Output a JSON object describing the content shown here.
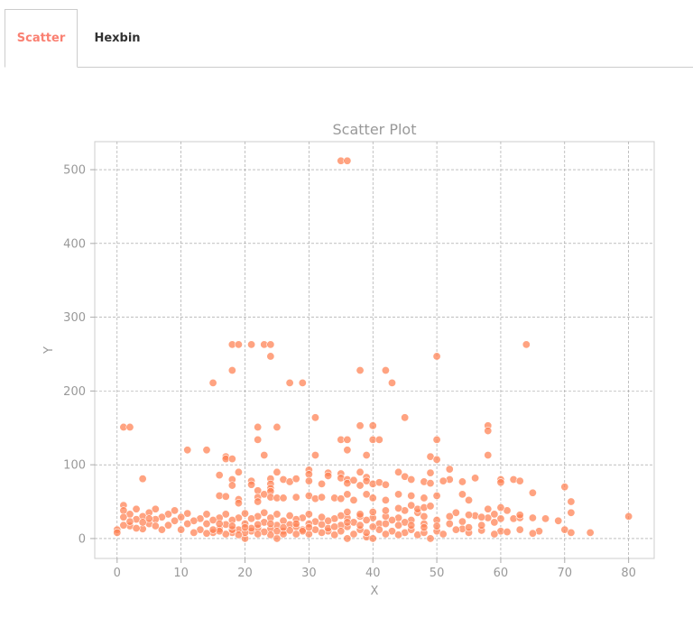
{
  "tabs": [
    {
      "label": "Scatter",
      "active": true
    },
    {
      "label": "Hexbin",
      "active": false
    }
  ],
  "colors": {
    "accent": "#fa8072",
    "point": "#ff7f50",
    "axis_text": "#999999",
    "grid": "#999999"
  },
  "chart_data": {
    "type": "scatter",
    "title": "Scatter Plot",
    "xlabel": "X",
    "ylabel": "Y",
    "xlim": [
      -3.5,
      84
    ],
    "ylim": [
      -27,
      538
    ],
    "xticks": [
      0,
      10,
      20,
      30,
      40,
      50,
      60,
      70,
      80
    ],
    "yticks": [
      0,
      100,
      200,
      300,
      400,
      500
    ],
    "grid": true,
    "grid_style": "dashed",
    "points": [
      [
        35,
        512
      ],
      [
        36,
        512
      ],
      [
        18,
        263
      ],
      [
        19,
        263
      ],
      [
        21,
        263
      ],
      [
        23,
        263
      ],
      [
        24,
        263
      ],
      [
        64,
        263
      ],
      [
        24,
        247
      ],
      [
        50,
        247
      ],
      [
        18,
        228
      ],
      [
        38,
        228
      ],
      [
        42,
        228
      ],
      [
        15,
        211
      ],
      [
        27,
        211
      ],
      [
        29,
        211
      ],
      [
        43,
        211
      ],
      [
        31,
        164
      ],
      [
        45,
        164
      ],
      [
        22,
        151
      ],
      [
        25,
        151
      ],
      [
        38,
        153
      ],
      [
        40,
        153
      ],
      [
        58,
        153
      ],
      [
        58,
        146
      ],
      [
        1,
        151
      ],
      [
        2,
        151
      ],
      [
        22,
        134
      ],
      [
        35,
        134
      ],
      [
        36,
        134
      ],
      [
        40,
        134
      ],
      [
        41,
        134
      ],
      [
        50,
        134
      ],
      [
        11,
        120
      ],
      [
        14,
        120
      ],
      [
        36,
        120
      ],
      [
        23,
        113
      ],
      [
        31,
        113
      ],
      [
        39,
        113
      ],
      [
        58,
        113
      ],
      [
        17,
        111
      ],
      [
        17,
        108
      ],
      [
        18,
        108
      ],
      [
        49,
        111
      ],
      [
        50,
        107
      ],
      [
        4,
        81
      ],
      [
        16,
        86
      ],
      [
        19,
        90
      ],
      [
        25,
        90
      ],
      [
        30,
        93
      ],
      [
        30,
        87
      ],
      [
        33,
        89
      ],
      [
        33,
        85
      ],
      [
        35,
        88
      ],
      [
        35,
        82
      ],
      [
        38,
        90
      ],
      [
        39,
        83
      ],
      [
        44,
        90
      ],
      [
        45,
        84
      ],
      [
        46,
        80
      ],
      [
        48,
        77
      ],
      [
        49,
        89
      ],
      [
        49,
        75
      ],
      [
        52,
        94
      ],
      [
        52,
        80
      ],
      [
        51,
        78
      ],
      [
        54,
        77
      ],
      [
        56,
        82
      ],
      [
        60,
        80
      ],
      [
        60,
        76
      ],
      [
        62,
        80
      ],
      [
        63,
        78
      ],
      [
        18,
        80
      ],
      [
        18,
        72
      ],
      [
        21,
        78
      ],
      [
        21,
        73
      ],
      [
        24,
        81
      ],
      [
        24,
        74
      ],
      [
        24,
        68
      ],
      [
        26,
        80
      ],
      [
        27,
        77
      ],
      [
        28,
        81
      ],
      [
        30,
        78
      ],
      [
        32,
        74
      ],
      [
        36,
        80
      ],
      [
        36,
        75
      ],
      [
        37,
        79
      ],
      [
        38,
        72
      ],
      [
        39,
        78
      ],
      [
        40,
        74
      ],
      [
        41,
        76
      ],
      [
        42,
        73
      ],
      [
        22,
        65
      ],
      [
        22,
        56
      ],
      [
        22,
        50
      ],
      [
        23,
        60
      ],
      [
        24,
        64
      ],
      [
        24,
        56
      ],
      [
        25,
        55
      ],
      [
        26,
        55
      ],
      [
        28,
        56
      ],
      [
        30,
        58
      ],
      [
        31,
        54
      ],
      [
        32,
        56
      ],
      [
        34,
        55
      ],
      [
        35,
        54
      ],
      [
        36,
        60
      ],
      [
        37,
        52
      ],
      [
        39,
        60
      ],
      [
        40,
        55
      ],
      [
        42,
        52
      ],
      [
        44,
        60
      ],
      [
        46,
        58
      ],
      [
        48,
        55
      ],
      [
        50,
        58
      ],
      [
        54,
        60
      ],
      [
        55,
        52
      ],
      [
        16,
        58
      ],
      [
        17,
        57
      ],
      [
        19,
        53
      ],
      [
        19,
        48
      ],
      [
        65,
        62
      ],
      [
        70,
        70
      ],
      [
        71,
        50
      ],
      [
        71,
        35
      ],
      [
        80,
        30
      ],
      [
        74,
        8
      ],
      [
        70,
        12
      ],
      [
        71,
        8
      ],
      [
        62,
        27
      ],
      [
        63,
        28
      ],
      [
        65,
        28
      ],
      [
        66,
        10
      ],
      [
        60,
        10
      ],
      [
        60,
        27
      ],
      [
        58,
        28
      ],
      [
        56,
        31
      ],
      [
        54,
        23
      ],
      [
        54,
        13
      ],
      [
        52,
        30
      ],
      [
        50,
        25
      ],
      [
        48,
        30
      ],
      [
        48,
        20
      ],
      [
        47,
        35
      ],
      [
        46,
        25
      ],
      [
        45,
        22
      ],
      [
        44,
        28
      ],
      [
        43,
        25
      ],
      [
        42,
        30
      ],
      [
        41,
        20
      ],
      [
        40,
        28
      ],
      [
        39,
        25
      ],
      [
        38,
        30
      ],
      [
        37,
        22
      ],
      [
        36,
        28
      ],
      [
        36,
        16
      ],
      [
        35,
        31
      ],
      [
        35,
        18
      ],
      [
        34,
        27
      ],
      [
        33,
        24
      ],
      [
        33,
        10
      ],
      [
        32,
        29
      ],
      [
        31,
        23
      ],
      [
        30,
        33
      ],
      [
        30,
        20
      ],
      [
        29,
        28
      ],
      [
        29,
        12
      ],
      [
        28,
        26
      ],
      [
        28,
        16
      ],
      [
        27,
        31
      ],
      [
        27,
        19
      ],
      [
        26,
        24
      ],
      [
        26,
        10
      ],
      [
        25,
        33
      ],
      [
        25,
        18
      ],
      [
        24,
        28
      ],
      [
        24,
        13
      ],
      [
        23,
        35
      ],
      [
        23,
        22
      ],
      [
        22,
        30
      ],
      [
        22,
        14
      ],
      [
        21,
        27
      ],
      [
        21,
        10
      ],
      [
        20,
        34
      ],
      [
        20,
        20
      ],
      [
        19,
        28
      ],
      [
        19,
        12
      ],
      [
        18,
        25
      ],
      [
        18,
        8
      ],
      [
        17,
        33
      ],
      [
        17,
        19
      ],
      [
        16,
        28
      ],
      [
        16,
        13
      ],
      [
        15,
        25
      ],
      [
        15,
        8
      ],
      [
        14,
        33
      ],
      [
        14,
        20
      ],
      [
        13,
        27
      ],
      [
        13,
        12
      ],
      [
        12,
        24
      ],
      [
        12,
        8
      ],
      [
        11,
        34
      ],
      [
        11,
        20
      ],
      [
        10,
        29
      ],
      [
        10,
        12
      ],
      [
        9,
        38
      ],
      [
        9,
        24
      ],
      [
        8,
        33
      ],
      [
        8,
        18
      ],
      [
        7,
        29
      ],
      [
        7,
        12
      ],
      [
        6,
        40
      ],
      [
        6,
        26
      ],
      [
        5,
        35
      ],
      [
        5,
        20
      ],
      [
        4,
        30
      ],
      [
        4,
        13
      ],
      [
        3,
        40
      ],
      [
        3,
        26
      ],
      [
        2,
        33
      ],
      [
        2,
        17
      ],
      [
        1,
        45
      ],
      [
        1,
        38
      ],
      [
        1,
        29
      ],
      [
        1,
        18
      ],
      [
        0,
        12
      ],
      [
        0,
        8
      ],
      [
        2,
        23
      ],
      [
        3,
        14
      ],
      [
        4,
        22
      ],
      [
        5,
        27
      ],
      [
        6,
        17
      ],
      [
        20,
        0
      ],
      [
        25,
        0
      ],
      [
        36,
        0
      ],
      [
        39,
        2
      ],
      [
        40,
        0
      ],
      [
        49,
        0
      ],
      [
        47,
        5
      ],
      [
        45,
        8
      ],
      [
        43,
        10
      ],
      [
        42,
        6
      ],
      [
        41,
        12
      ],
      [
        39,
        8
      ],
      [
        38,
        12
      ],
      [
        37,
        6
      ],
      [
        35,
        10
      ],
      [
        34,
        5
      ],
      [
        33,
        14
      ],
      [
        32,
        8
      ],
      [
        31,
        12
      ],
      [
        30,
        6
      ],
      [
        29,
        10
      ],
      [
        28,
        6
      ],
      [
        27,
        11
      ],
      [
        26,
        6
      ],
      [
        25,
        10
      ],
      [
        24,
        5
      ],
      [
        23,
        9
      ],
      [
        22,
        6
      ],
      [
        21,
        14
      ],
      [
        20,
        8
      ],
      [
        19,
        5
      ],
      [
        18,
        12
      ],
      [
        17,
        6
      ],
      [
        16,
        10
      ],
      [
        15,
        12
      ],
      [
        14,
        7
      ],
      [
        44,
        5
      ],
      [
        46,
        12
      ],
      [
        48,
        8
      ],
      [
        50,
        10
      ],
      [
        51,
        6
      ],
      [
        53,
        12
      ],
      [
        55,
        8
      ],
      [
        57,
        11
      ],
      [
        59,
        6
      ],
      [
        61,
        9
      ],
      [
        63,
        12
      ],
      [
        65,
        7
      ],
      [
        52,
        20
      ],
      [
        55,
        15
      ],
      [
        57,
        18
      ],
      [
        59,
        22
      ],
      [
        44,
        18
      ],
      [
        42,
        20
      ],
      [
        46,
        18
      ],
      [
        48,
        15
      ],
      [
        50,
        17
      ],
      [
        40,
        16
      ],
      [
        38,
        18
      ],
      [
        36,
        22
      ],
      [
        34,
        16
      ],
      [
        32,
        19
      ],
      [
        30,
        15
      ],
      [
        28,
        20
      ],
      [
        26,
        15
      ],
      [
        24,
        20
      ],
      [
        22,
        19
      ],
      [
        20,
        15
      ],
      [
        18,
        17
      ],
      [
        16,
        20
      ],
      [
        45,
        38
      ],
      [
        47,
        40
      ],
      [
        48,
        42
      ],
      [
        49,
        44
      ],
      [
        46,
        45
      ],
      [
        44,
        41
      ],
      [
        42,
        38
      ],
      [
        40,
        36
      ],
      [
        38,
        33
      ],
      [
        36,
        36
      ],
      [
        53,
        35
      ],
      [
        55,
        32
      ],
      [
        57,
        29
      ],
      [
        59,
        33
      ],
      [
        61,
        38
      ],
      [
        63,
        32
      ],
      [
        67,
        27
      ],
      [
        69,
        24
      ],
      [
        58,
        40
      ],
      [
        60,
        42
      ]
    ]
  }
}
